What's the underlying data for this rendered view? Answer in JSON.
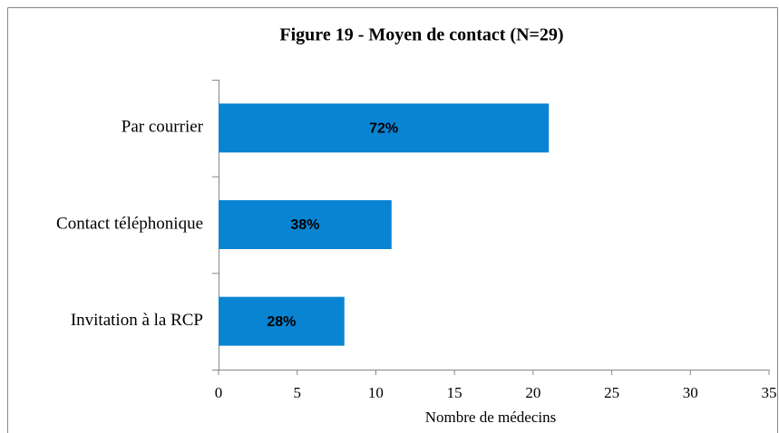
{
  "chart_data": {
    "type": "barh",
    "title": "Figure 19 - Moyen de contact (N=29)",
    "categories": [
      "Par courrier",
      "Contact téléphonique",
      "Invitation à la RCP"
    ],
    "values": [
      21,
      11,
      8
    ],
    "value_labels": [
      "72%",
      "38%",
      "28%"
    ],
    "color": "#0984d2",
    "xlabel": "Nombre de médecins",
    "xlim": [
      0,
      35
    ],
    "xticks": [
      0,
      5,
      10,
      15,
      20,
      25,
      30,
      35
    ],
    "grid": false
  }
}
